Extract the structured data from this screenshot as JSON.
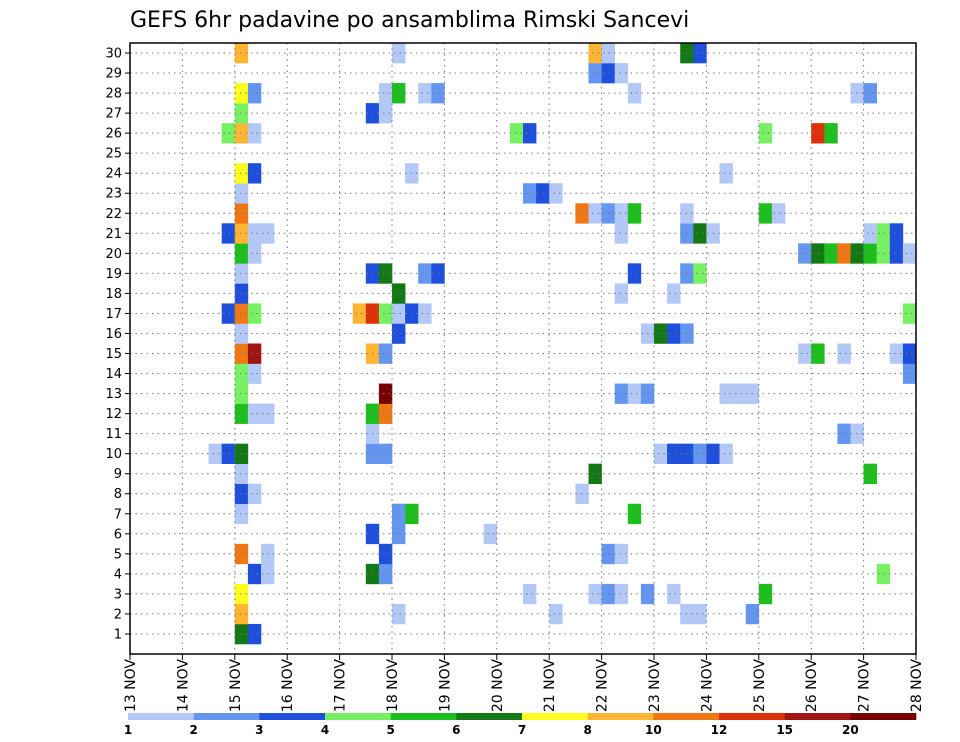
{
  "chart_data": {
    "type": "heatmap",
    "title": "GEFS 6hr padavine po ansamblima Rimski Sancevi",
    "x_tick_labels": [
      "13 NOV",
      "14 NOV",
      "15 NOV",
      "16 NOV",
      "17 NOV",
      "18 NOV",
      "19 NOV",
      "20 NOV",
      "21 NOV",
      "22 NOV",
      "23 NOV",
      "24 NOV",
      "25 NOV",
      "26 NOV",
      "27 NOV",
      "28 NOV"
    ],
    "x_days_start": "13 NOV",
    "step_hours": 6,
    "steps": 60,
    "members": [
      1,
      2,
      3,
      4,
      5,
      6,
      7,
      8,
      9,
      10,
      11,
      12,
      13,
      14,
      15,
      16,
      17,
      18,
      19,
      20,
      21,
      22,
      23,
      24,
      25,
      26,
      27,
      28,
      29,
      30
    ],
    "grid": true,
    "color_levels": [
      "1",
      "2",
      "3",
      "4",
      "5",
      "6",
      "7",
      "8",
      "10",
      "12",
      "15",
      "20"
    ],
    "colors": [
      "#b4c8f8",
      "#6496f0",
      "#1e50dc",
      "#78f064",
      "#1ebe1e",
      "#147814",
      "#ffff1e",
      "#ffb432",
      "#f07814",
      "#dc320a",
      "#a01414",
      "#780000"
    ],
    "cells": [
      {
        "m": 0,
        "s": 8,
        "c": 5
      },
      {
        "m": 0,
        "s": 9,
        "c": 2
      },
      {
        "m": 1,
        "s": 8,
        "c": 7
      },
      {
        "m": 1,
        "s": 20,
        "c": 0
      },
      {
        "m": 1,
        "s": 32,
        "c": 0
      },
      {
        "m": 1,
        "s": 42,
        "c": 0
      },
      {
        "m": 1,
        "s": 43,
        "c": 0
      },
      {
        "m": 1,
        "s": 47,
        "c": 1
      },
      {
        "m": 2,
        "s": 8,
        "c": 6
      },
      {
        "m": 2,
        "s": 30,
        "c": 0
      },
      {
        "m": 2,
        "s": 35,
        "c": 0
      },
      {
        "m": 2,
        "s": 36,
        "c": 1
      },
      {
        "m": 2,
        "s": 37,
        "c": 0
      },
      {
        "m": 2,
        "s": 39,
        "c": 1
      },
      {
        "m": 2,
        "s": 41,
        "c": 0
      },
      {
        "m": 2,
        "s": 48,
        "c": 4
      },
      {
        "m": 3,
        "s": 9,
        "c": 2
      },
      {
        "m": 3,
        "s": 10,
        "c": 0
      },
      {
        "m": 3,
        "s": 18,
        "c": 5
      },
      {
        "m": 3,
        "s": 19,
        "c": 1
      },
      {
        "m": 3,
        "s": 57,
        "c": 3
      },
      {
        "m": 4,
        "s": 8,
        "c": 8
      },
      {
        "m": 4,
        "s": 10,
        "c": 0
      },
      {
        "m": 4,
        "s": 19,
        "c": 2
      },
      {
        "m": 4,
        "s": 36,
        "c": 1
      },
      {
        "m": 4,
        "s": 37,
        "c": 0
      },
      {
        "m": 5,
        "s": 18,
        "c": 2
      },
      {
        "m": 5,
        "s": 20,
        "c": 1
      },
      {
        "m": 5,
        "s": 27,
        "c": 0
      },
      {
        "m": 6,
        "s": 8,
        "c": 0
      },
      {
        "m": 6,
        "s": 20,
        "c": 1
      },
      {
        "m": 6,
        "s": 21,
        "c": 4
      },
      {
        "m": 6,
        "s": 38,
        "c": 4
      },
      {
        "m": 7,
        "s": 8,
        "c": 2
      },
      {
        "m": 7,
        "s": 9,
        "c": 0
      },
      {
        "m": 7,
        "s": 34,
        "c": 0
      },
      {
        "m": 8,
        "s": 8,
        "c": 0
      },
      {
        "m": 8,
        "s": 35,
        "c": 5
      },
      {
        "m": 8,
        "s": 56,
        "c": 4
      },
      {
        "m": 9,
        "s": 6,
        "c": 0
      },
      {
        "m": 9,
        "s": 7,
        "c": 2
      },
      {
        "m": 9,
        "s": 8,
        "c": 5
      },
      {
        "m": 9,
        "s": 18,
        "c": 1
      },
      {
        "m": 9,
        "s": 19,
        "c": 1
      },
      {
        "m": 9,
        "s": 40,
        "c": 0
      },
      {
        "m": 9,
        "s": 41,
        "c": 2
      },
      {
        "m": 9,
        "s": 42,
        "c": 2
      },
      {
        "m": 9,
        "s": 43,
        "c": 1
      },
      {
        "m": 9,
        "s": 44,
        "c": 2
      },
      {
        "m": 9,
        "s": 45,
        "c": 0
      },
      {
        "m": 10,
        "s": 18,
        "c": 0
      },
      {
        "m": 10,
        "s": 54,
        "c": 1
      },
      {
        "m": 10,
        "s": 55,
        "c": 0
      },
      {
        "m": 11,
        "s": 8,
        "c": 4
      },
      {
        "m": 11,
        "s": 9,
        "c": 0
      },
      {
        "m": 11,
        "s": 10,
        "c": 0
      },
      {
        "m": 11,
        "s": 18,
        "c": 4
      },
      {
        "m": 11,
        "s": 19,
        "c": 8
      },
      {
        "m": 12,
        "s": 8,
        "c": 3
      },
      {
        "m": 12,
        "s": 19,
        "c": 11
      },
      {
        "m": 12,
        "s": 37,
        "c": 1
      },
      {
        "m": 12,
        "s": 38,
        "c": 0
      },
      {
        "m": 12,
        "s": 39,
        "c": 1
      },
      {
        "m": 12,
        "s": 45,
        "c": 0
      },
      {
        "m": 12,
        "s": 46,
        "c": 0
      },
      {
        "m": 12,
        "s": 47,
        "c": 0
      },
      {
        "m": 13,
        "s": 8,
        "c": 3
      },
      {
        "m": 13,
        "s": 9,
        "c": 0
      },
      {
        "m": 13,
        "s": 59,
        "c": 1
      },
      {
        "m": 14,
        "s": 8,
        "c": 8
      },
      {
        "m": 14,
        "s": 9,
        "c": 10
      },
      {
        "m": 14,
        "s": 18,
        "c": 7
      },
      {
        "m": 14,
        "s": 19,
        "c": 1
      },
      {
        "m": 14,
        "s": 51,
        "c": 0
      },
      {
        "m": 14,
        "s": 52,
        "c": 4
      },
      {
        "m": 14,
        "s": 54,
        "c": 0
      },
      {
        "m": 14,
        "s": 58,
        "c": 0
      },
      {
        "m": 14,
        "s": 59,
        "c": 2
      },
      {
        "m": 15,
        "s": 8,
        "c": 0
      },
      {
        "m": 15,
        "s": 20,
        "c": 2
      },
      {
        "m": 15,
        "s": 39,
        "c": 0
      },
      {
        "m": 15,
        "s": 40,
        "c": 5
      },
      {
        "m": 15,
        "s": 41,
        "c": 2
      },
      {
        "m": 15,
        "s": 42,
        "c": 1
      },
      {
        "m": 16,
        "s": 7,
        "c": 2
      },
      {
        "m": 16,
        "s": 8,
        "c": 8
      },
      {
        "m": 16,
        "s": 9,
        "c": 3
      },
      {
        "m": 16,
        "s": 17,
        "c": 7
      },
      {
        "m": 16,
        "s": 18,
        "c": 9
      },
      {
        "m": 16,
        "s": 19,
        "c": 3
      },
      {
        "m": 16,
        "s": 20,
        "c": 0
      },
      {
        "m": 16,
        "s": 21,
        "c": 2
      },
      {
        "m": 16,
        "s": 22,
        "c": 0
      },
      {
        "m": 16,
        "s": 59,
        "c": 3
      },
      {
        "m": 17,
        "s": 8,
        "c": 2
      },
      {
        "m": 17,
        "s": 20,
        "c": 5
      },
      {
        "m": 17,
        "s": 37,
        "c": 0
      },
      {
        "m": 17,
        "s": 41,
        "c": 0
      },
      {
        "m": 18,
        "s": 8,
        "c": 0
      },
      {
        "m": 18,
        "s": 18,
        "c": 2
      },
      {
        "m": 18,
        "s": 19,
        "c": 5
      },
      {
        "m": 18,
        "s": 22,
        "c": 1
      },
      {
        "m": 18,
        "s": 23,
        "c": 2
      },
      {
        "m": 18,
        "s": 38,
        "c": 2
      },
      {
        "m": 18,
        "s": 42,
        "c": 1
      },
      {
        "m": 18,
        "s": 43,
        "c": 3
      },
      {
        "m": 19,
        "s": 8,
        "c": 4
      },
      {
        "m": 19,
        "s": 9,
        "c": 0
      },
      {
        "m": 19,
        "s": 51,
        "c": 1
      },
      {
        "m": 19,
        "s": 52,
        "c": 5
      },
      {
        "m": 19,
        "s": 53,
        "c": 4
      },
      {
        "m": 19,
        "s": 54,
        "c": 8
      },
      {
        "m": 19,
        "s": 55,
        "c": 5
      },
      {
        "m": 19,
        "s": 56,
        "c": 4
      },
      {
        "m": 19,
        "s": 57,
        "c": 3
      },
      {
        "m": 19,
        "s": 58,
        "c": 2
      },
      {
        "m": 19,
        "s": 59,
        "c": 0
      },
      {
        "m": 20,
        "s": 7,
        "c": 2
      },
      {
        "m": 20,
        "s": 8,
        "c": 7
      },
      {
        "m": 20,
        "s": 9,
        "c": 0
      },
      {
        "m": 20,
        "s": 10,
        "c": 0
      },
      {
        "m": 20,
        "s": 37,
        "c": 0
      },
      {
        "m": 20,
        "s": 42,
        "c": 1
      },
      {
        "m": 20,
        "s": 43,
        "c": 5
      },
      {
        "m": 20,
        "s": 44,
        "c": 0
      },
      {
        "m": 20,
        "s": 56,
        "c": 0
      },
      {
        "m": 20,
        "s": 57,
        "c": 3
      },
      {
        "m": 20,
        "s": 58,
        "c": 2
      },
      {
        "m": 21,
        "s": 8,
        "c": 8
      },
      {
        "m": 21,
        "s": 34,
        "c": 8
      },
      {
        "m": 21,
        "s": 35,
        "c": 0
      },
      {
        "m": 21,
        "s": 36,
        "c": 1
      },
      {
        "m": 21,
        "s": 37,
        "c": 0
      },
      {
        "m": 21,
        "s": 38,
        "c": 4
      },
      {
        "m": 21,
        "s": 42,
        "c": 0
      },
      {
        "m": 21,
        "s": 48,
        "c": 4
      },
      {
        "m": 21,
        "s": 49,
        "c": 0
      },
      {
        "m": 22,
        "s": 8,
        "c": 0
      },
      {
        "m": 22,
        "s": 30,
        "c": 1
      },
      {
        "m": 22,
        "s": 31,
        "c": 2
      },
      {
        "m": 22,
        "s": 32,
        "c": 0
      },
      {
        "m": 23,
        "s": 8,
        "c": 6
      },
      {
        "m": 23,
        "s": 9,
        "c": 2
      },
      {
        "m": 23,
        "s": 21,
        "c": 0
      },
      {
        "m": 23,
        "s": 45,
        "c": 0
      },
      {
        "m": 25,
        "s": 7,
        "c": 3
      },
      {
        "m": 25,
        "s": 8,
        "c": 7
      },
      {
        "m": 25,
        "s": 9,
        "c": 0
      },
      {
        "m": 25,
        "s": 29,
        "c": 3
      },
      {
        "m": 25,
        "s": 30,
        "c": 2
      },
      {
        "m": 25,
        "s": 48,
        "c": 3
      },
      {
        "m": 25,
        "s": 52,
        "c": 9
      },
      {
        "m": 25,
        "s": 53,
        "c": 4
      },
      {
        "m": 26,
        "s": 8,
        "c": 3
      },
      {
        "m": 26,
        "s": 18,
        "c": 2
      },
      {
        "m": 26,
        "s": 19,
        "c": 0
      },
      {
        "m": 27,
        "s": 8,
        "c": 6
      },
      {
        "m": 27,
        "s": 9,
        "c": 1
      },
      {
        "m": 27,
        "s": 19,
        "c": 0
      },
      {
        "m": 27,
        "s": 20,
        "c": 4
      },
      {
        "m": 27,
        "s": 22,
        "c": 0
      },
      {
        "m": 27,
        "s": 23,
        "c": 1
      },
      {
        "m": 27,
        "s": 38,
        "c": 0
      },
      {
        "m": 27,
        "s": 55,
        "c": 0
      },
      {
        "m": 27,
        "s": 56,
        "c": 1
      },
      {
        "m": 28,
        "s": 35,
        "c": 1
      },
      {
        "m": 28,
        "s": 36,
        "c": 2
      },
      {
        "m": 28,
        "s": 37,
        "c": 0
      },
      {
        "m": 29,
        "s": 8,
        "c": 7
      },
      {
        "m": 29,
        "s": 20,
        "c": 0
      },
      {
        "m": 29,
        "s": 35,
        "c": 7
      },
      {
        "m": 29,
        "s": 36,
        "c": 0
      },
      {
        "m": 29,
        "s": 42,
        "c": 5
      },
      {
        "m": 29,
        "s": 43,
        "c": 2
      }
    ]
  }
}
